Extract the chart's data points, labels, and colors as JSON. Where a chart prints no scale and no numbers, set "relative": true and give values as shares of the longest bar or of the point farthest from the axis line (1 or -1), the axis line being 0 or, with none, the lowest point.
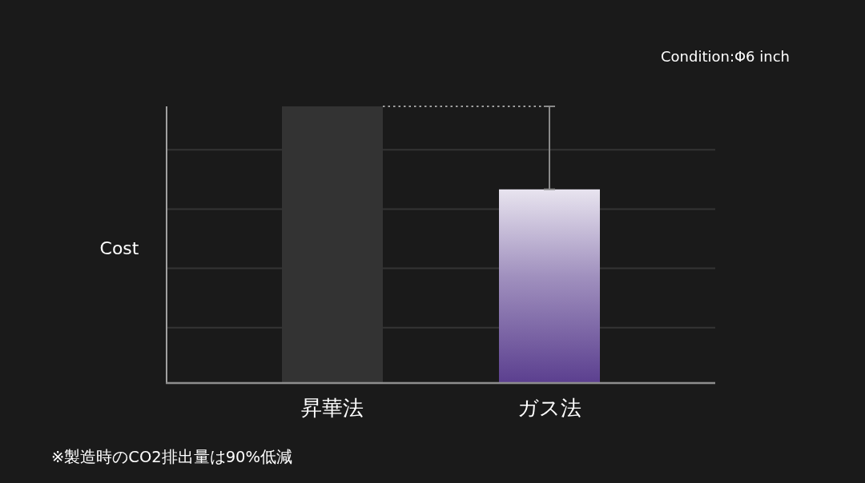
{
  "chart_data": {
    "type": "bar",
    "relative": true,
    "ylabel": "Cost",
    "categories": [
      "昇華法",
      "ガス法"
    ],
    "values": [
      1,
      0.7
    ],
    "colors": [
      "#333333",
      "#5b3f8f"
    ],
    "ref_lines": [
      {
        "axis": "y",
        "value": 1,
        "line_style": "dotted",
        "color": "#a0a0a0"
      }
    ],
    "grid": true,
    "annotations": [
      "Condition:Φ6 inch",
      "※製造時のCO2排出量は90%低減"
    ]
  }
}
